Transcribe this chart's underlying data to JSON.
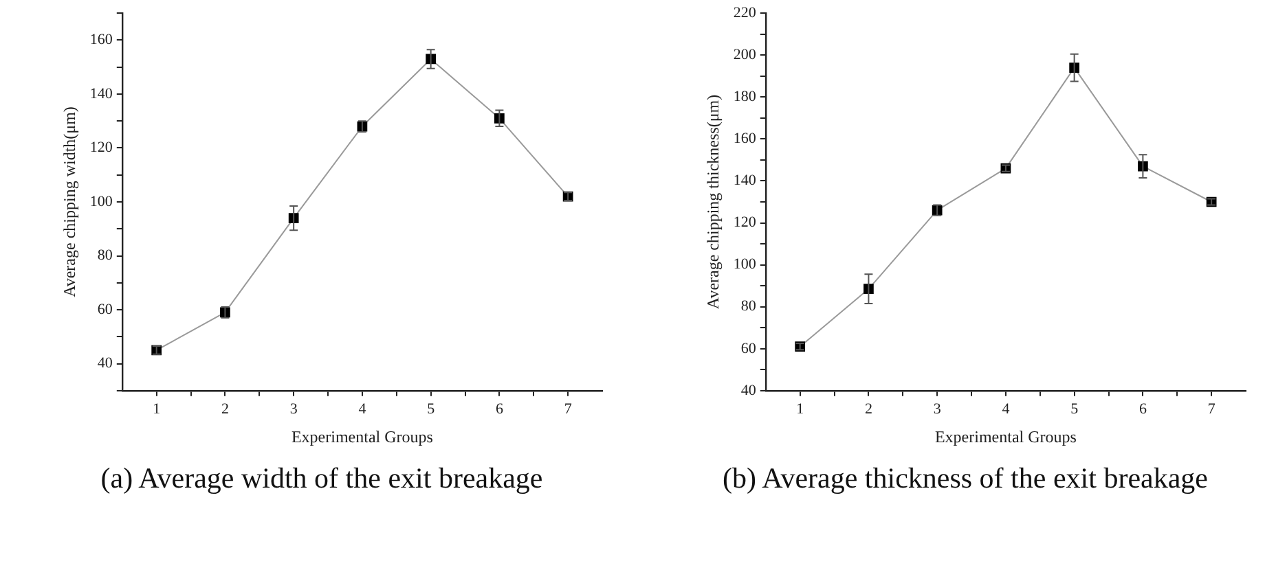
{
  "chart_data": [
    {
      "type": "line",
      "xlabel": "Experimental Groups",
      "ylabel": "Average chipping width(μm)",
      "x": [
        1,
        2,
        3,
        4,
        5,
        6,
        7
      ],
      "series": [
        {
          "color": "#000000",
          "values": [
            45,
            59,
            94,
            128,
            153,
            131,
            102
          ],
          "errors": [
            1.5,
            2,
            4.5,
            2,
            3.5,
            3,
            1.5
          ]
        }
      ],
      "xlim": [
        0.5,
        7.5
      ],
      "xticks": [
        1,
        {
          "value": 1.5,
          "label": null
        },
        2,
        {
          "value": 2.5,
          "label": null
        },
        3,
        {
          "value": 3.5,
          "label": null
        },
        4,
        {
          "value": 4.5,
          "label": null
        },
        5,
        {
          "value": 5.5,
          "label": null
        },
        6,
        {
          "value": 6.5,
          "label": null
        },
        7
      ],
      "ylim": [
        30,
        170
      ],
      "yticks": [
        {
          "value": 30,
          "label": null
        },
        40,
        {
          "value": 50,
          "label": null
        },
        60,
        {
          "value": 70,
          "label": null
        },
        80,
        {
          "value": 90,
          "label": null
        },
        100,
        {
          "value": 110,
          "label": null
        },
        120,
        {
          "value": 130,
          "label": null
        },
        140,
        {
          "value": 150,
          "label": null
        },
        160,
        {
          "value": 170,
          "label": null
        }
      ],
      "grid": false,
      "legend": false,
      "marker": "square",
      "line_style": "solid",
      "annotations": [
        "(a) Average width of the exit breakage"
      ]
    },
    {
      "type": "line",
      "xlabel": "Experimental Groups",
      "ylabel": "Average chipping thickness(μm)",
      "x": [
        1,
        2,
        3,
        4,
        5,
        6,
        7
      ],
      "series": [
        {
          "color": "#000000",
          "values": [
            61,
            88.5,
            126,
            146,
            194,
            147,
            130
          ],
          "errors": [
            1.5,
            7,
            2.5,
            1.5,
            6.5,
            5.5,
            1.5
          ]
        }
      ],
      "xlim": [
        0.5,
        7.5
      ],
      "xticks": [
        1,
        {
          "value": 1.5,
          "label": null
        },
        2,
        {
          "value": 2.5,
          "label": null
        },
        3,
        {
          "value": 3.5,
          "label": null
        },
        4,
        {
          "value": 4.5,
          "label": null
        },
        5,
        {
          "value": 5.5,
          "label": null
        },
        6,
        {
          "value": 6.5,
          "label": null
        },
        7
      ],
      "ylim": [
        40,
        220
      ],
      "yticks": [
        40,
        {
          "value": 50,
          "label": null
        },
        60,
        {
          "value": 70,
          "label": null
        },
        80,
        {
          "value": 90,
          "label": null
        },
        100,
        {
          "value": 110,
          "label": null
        },
        120,
        {
          "value": 130,
          "label": null
        },
        140,
        {
          "value": 150,
          "label": null
        },
        160,
        {
          "value": 170,
          "label": null
        },
        180,
        {
          "value": 190,
          "label": null
        },
        200,
        {
          "value": 210,
          "label": null
        },
        220
      ],
      "grid": false,
      "legend": false,
      "marker": "square",
      "line_style": "solid",
      "annotations": [
        "(b) Average thickness of the exit breakage"
      ]
    }
  ]
}
